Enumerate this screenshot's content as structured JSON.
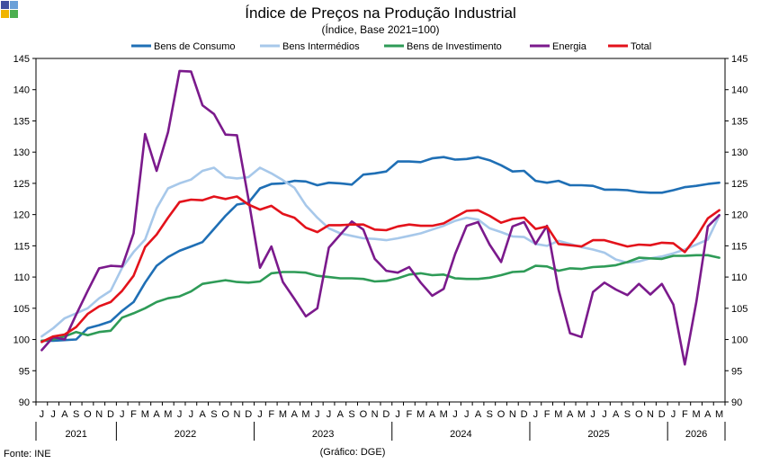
{
  "colors": {
    "logo": [
      "#3f4f9f",
      "#6aa0d8",
      "#f0b400",
      "#4caf50"
    ]
  },
  "chart_data": {
    "type": "line",
    "title": "Índice de Preços na Produção Industrial",
    "subtitle": "(Índice, Base 2021=100)",
    "source": "Fonte: INE",
    "credit": "(Gráfico: DGE)",
    "ylim": [
      90,
      145
    ],
    "yticks": [
      90,
      95,
      100,
      105,
      110,
      115,
      120,
      125,
      130,
      135,
      140,
      145
    ],
    "grid": false,
    "legend": "top",
    "x": [
      "J",
      "J",
      "A",
      "S",
      "O",
      "N",
      "D",
      "J",
      "F",
      "M",
      "A",
      "M",
      "J",
      "J",
      "A",
      "S",
      "O",
      "N",
      "D",
      "J",
      "F",
      "M",
      "A",
      "M",
      "J",
      "J",
      "A",
      "S",
      "O",
      "N",
      "D",
      "J",
      "F",
      "M",
      "A",
      "M",
      "J",
      "J",
      "A",
      "S",
      "O",
      "N",
      "D",
      "J",
      "F",
      "M",
      "A",
      "M",
      "J",
      "J",
      "A",
      "S",
      "O",
      "N",
      "D",
      "J",
      "F",
      "M",
      "A",
      "M"
    ],
    "years": [
      {
        "label": "2021",
        "start": 0,
        "end": 6
      },
      {
        "label": "2022",
        "start": 7,
        "end": 18
      },
      {
        "label": "2023",
        "start": 19,
        "end": 30
      },
      {
        "label": "2024",
        "start": 31,
        "end": 42
      },
      {
        "label": "2025",
        "start": 43,
        "end": 54
      },
      {
        "label": "2026",
        "start": 55,
        "end": 59
      }
    ],
    "series": [
      {
        "name": "Bens de Consumo",
        "color": "#1f6fb5",
        "values": [
          99.8,
          99.8,
          99.9,
          100.0,
          101.8,
          102.3,
          102.9,
          104.6,
          106.0,
          109.1,
          111.8,
          113.2,
          114.2,
          114.9,
          115.6,
          117.7,
          119.8,
          121.6,
          121.9,
          124.2,
          124.9,
          125.0,
          125.4,
          125.3,
          124.7,
          125.1,
          125.0,
          124.8,
          126.4,
          126.6,
          126.9,
          128.5,
          128.5,
          128.4,
          129.0,
          129.2,
          128.8,
          128.9,
          129.2,
          128.7,
          127.9,
          126.9,
          127.0,
          125.4,
          125.1,
          125.4,
          124.7,
          124.7,
          124.6,
          124.0,
          124.0,
          123.9,
          123.6,
          123.5,
          123.5,
          123.9,
          124.4,
          124.6,
          124.9,
          125.1
        ]
      },
      {
        "name": "Bens Intermédios",
        "color": "#a7c8ea",
        "values": [
          100.5,
          101.8,
          103.4,
          104.2,
          105.0,
          106.6,
          107.8,
          111.5,
          114.0,
          116.0,
          121.0,
          124.2,
          125.0,
          125.6,
          127.0,
          127.5,
          126.0,
          125.8,
          126.0,
          127.5,
          126.6,
          125.5,
          124.3,
          121.5,
          119.5,
          117.8,
          117.0,
          116.6,
          116.2,
          116.1,
          115.9,
          116.2,
          116.6,
          117.0,
          117.6,
          118.2,
          119.0,
          119.5,
          119.2,
          117.8,
          117.2,
          116.5,
          116.4,
          115.3,
          115.0,
          115.8,
          115.3,
          114.8,
          114.4,
          113.9,
          112.8,
          112.3,
          112.5,
          113.0,
          113.3,
          113.8,
          114.4,
          115.2,
          116.0,
          119.8
        ]
      },
      {
        "name": "Bens de Investimento",
        "color": "#2e9b57",
        "values": [
          99.8,
          100.0,
          100.5,
          101.2,
          100.7,
          101.2,
          101.4,
          103.5,
          104.2,
          105.0,
          106.0,
          106.6,
          106.9,
          107.7,
          108.9,
          109.2,
          109.5,
          109.2,
          109.1,
          109.3,
          110.6,
          110.8,
          110.8,
          110.7,
          110.2,
          110.0,
          109.8,
          109.8,
          109.7,
          109.3,
          109.4,
          109.8,
          110.4,
          110.6,
          110.3,
          110.4,
          109.8,
          109.7,
          109.7,
          109.9,
          110.3,
          110.8,
          110.9,
          111.8,
          111.7,
          111.0,
          111.4,
          111.3,
          111.6,
          111.7,
          111.9,
          112.4,
          113.1,
          113.0,
          112.9,
          113.4,
          113.4,
          113.5,
          113.5,
          113.1
        ]
      },
      {
        "name": "Energia",
        "color": "#7b1a8c",
        "values": [
          98.3,
          100.4,
          100.0,
          104.0,
          107.8,
          111.4,
          111.8,
          111.7,
          117.0,
          132.9,
          127.0,
          133.2,
          143.0,
          142.9,
          137.5,
          136.1,
          132.8,
          132.7,
          122.5,
          111.5,
          114.9,
          109.2,
          106.5,
          103.7,
          105.0,
          114.7,
          116.8,
          118.9,
          117.6,
          112.9,
          111.0,
          110.7,
          111.6,
          109.1,
          107.0,
          108.1,
          113.7,
          118.2,
          118.8,
          115.2,
          112.4,
          118.1,
          118.8,
          115.3,
          118.2,
          108.0,
          101.0,
          100.4,
          107.6,
          109.1,
          108.0,
          107.1,
          108.9,
          107.2,
          108.9,
          105.6,
          96.0,
          106.0,
          118.1,
          119.9
        ]
      },
      {
        "name": "Total",
        "color": "#e3121b",
        "values": [
          99.6,
          100.5,
          100.8,
          102.0,
          104.1,
          105.3,
          106.0,
          107.8,
          110.2,
          114.8,
          116.8,
          119.5,
          122.0,
          122.4,
          122.3,
          122.9,
          122.5,
          122.9,
          121.6,
          120.8,
          121.4,
          120.1,
          119.5,
          117.9,
          117.2,
          118.3,
          118.3,
          118.4,
          118.4,
          117.6,
          117.5,
          118.1,
          118.4,
          118.2,
          118.2,
          118.6,
          119.6,
          120.6,
          120.7,
          119.8,
          118.7,
          119.3,
          119.5,
          117.7,
          118.1,
          115.3,
          115.1,
          114.9,
          115.9,
          115.9,
          115.4,
          114.9,
          115.2,
          115.1,
          115.5,
          115.4,
          114.0,
          116.4,
          119.4,
          120.7
        ]
      }
    ]
  }
}
